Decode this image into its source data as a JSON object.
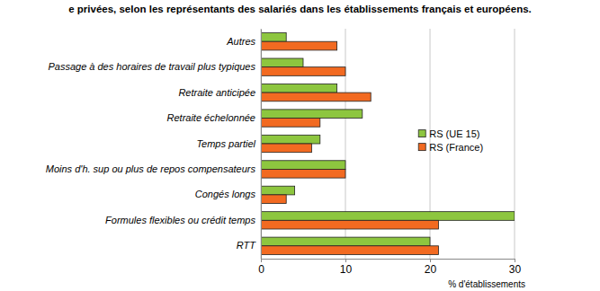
{
  "chart_data": {
    "type": "bar",
    "orientation": "horizontal",
    "title": "e privées, selon les représentants des salariés dans les établissements français et européens.",
    "x_label": "% d'établissements",
    "categories": [
      "Autres",
      "Passage à des horaires de travail plus typiques",
      "Retraite anticipée",
      "Retraite échelonnée",
      "Temps partiel",
      "Moins d'h. sup ou plus de repos compensateurs",
      "Congés longs",
      "Formules flexibles ou crédit temps",
      "RTT"
    ],
    "series": [
      {
        "name": "RS (UE 15)",
        "color": "#8dc63f",
        "values": [
          3,
          5,
          9,
          12,
          7,
          10,
          4,
          30,
          20
        ]
      },
      {
        "name": "RS (France)",
        "color": "#f26a21",
        "values": [
          9,
          10,
          13,
          7,
          6,
          10,
          3,
          21,
          21
        ]
      }
    ],
    "xlim": [
      0,
      30
    ],
    "xticks": [
      0,
      10,
      20,
      30
    ],
    "grid": true,
    "legend": "right"
  }
}
